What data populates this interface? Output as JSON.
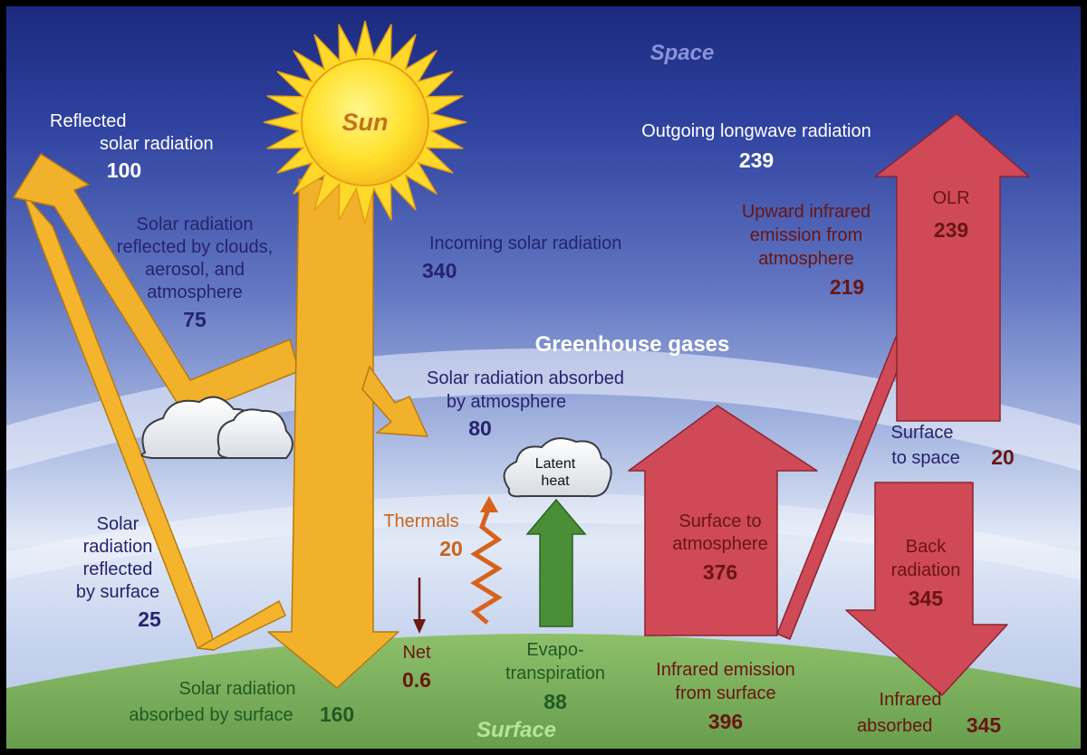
{
  "colors": {
    "space_top": "#1c2c82",
    "space_mid": "#4a63b8",
    "atmosphere_light": "#dfe8f6",
    "surface_green": "#7dae5f",
    "solar_arrow": "#f2b12a",
    "infrared_arrow": "#cf4a56",
    "thermal_orange": "#d8621c",
    "evapo_green": "#4a8e36",
    "net_arrow": "#6a1b14",
    "label_white": "#ffffff",
    "label_navy": "#26236e",
    "label_maroon": "#6a1512",
    "label_orange": "#c8641d",
    "label_darkgreen": "#205a24",
    "sun_fill": "#ffde2a"
  },
  "regions": {
    "space": "Space",
    "greenhouse": "Greenhouse gases",
    "surface": "Surface"
  },
  "sun": {
    "label": "Sun"
  },
  "reflected_solar": {
    "line1": "Reflected",
    "line2": "solar radiation",
    "value": "100"
  },
  "reflected_clouds": {
    "line1": "Solar radiation",
    "line2": "reflected by clouds,",
    "line3": "aerosol, and",
    "line4": "atmosphere",
    "value": "75"
  },
  "reflected_surface": {
    "line1": "Solar",
    "line2": "radiation",
    "line3": "reflected",
    "line4": "by surface",
    "value": "25"
  },
  "absorbed_surface": {
    "line1": "Solar radiation",
    "line2": "absorbed by surface",
    "value": "160"
  },
  "incoming_solar": {
    "label": "Incoming solar radiation",
    "value": "340"
  },
  "absorbed_atmosphere": {
    "line1": "Solar radiation absorbed",
    "line2": "by atmosphere",
    "value": "80"
  },
  "outgoing_longwave": {
    "label": "Outgoing longwave radiation",
    "value": "239"
  },
  "upward_infrared": {
    "line1": "Upward infrared",
    "line2": "emission from",
    "line3": "atmosphere",
    "value": "219"
  },
  "olr": {
    "label": "OLR",
    "value": "239"
  },
  "surface_to_space": {
    "line1": "Surface",
    "line2": "to space",
    "value": "20"
  },
  "surface_to_atmosphere": {
    "line1": "Surface to",
    "line2": "atmosphere",
    "value": "376"
  },
  "back_radiation": {
    "line1": "Back",
    "line2": "radiation",
    "value": "345"
  },
  "infrared_emission": {
    "line1": "Infrared emission",
    "line2": "from surface",
    "value": "396"
  },
  "infrared_absorbed": {
    "line1": "Infrared",
    "line2": "absorbed",
    "value": "345"
  },
  "thermals": {
    "label": "Thermals",
    "value": "20"
  },
  "net": {
    "label": "Net",
    "value": "0.6"
  },
  "evapotranspiration": {
    "line1": "Evapo-",
    "line2": "transpiration",
    "value": "88"
  },
  "latent_heat": {
    "line1": "Latent",
    "line2": "heat"
  }
}
